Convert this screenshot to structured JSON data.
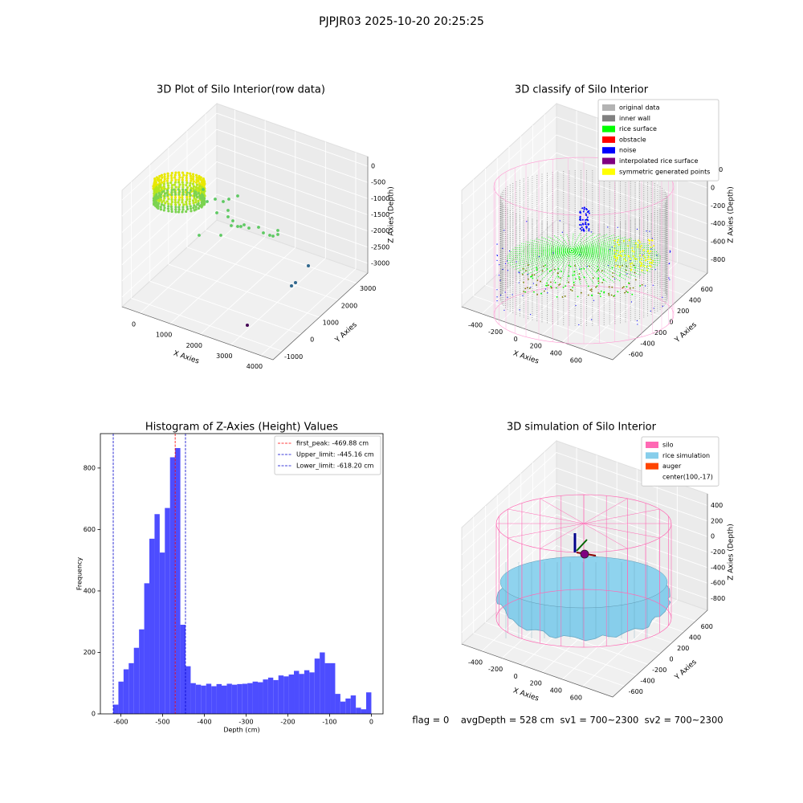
{
  "figure": {
    "title": "PJPJR03 2025-10-20 20:25:25",
    "footer": "flag = 0    avgDepth = 528 cm  sv1 = 700~2300  sv2 = 700~2300"
  },
  "chart_data": [
    {
      "type": "scatter3d",
      "title": "3D Plot of Silo Interior(row data)",
      "xlabel": "X Axies",
      "ylabel": "Y Axies",
      "zlabel": "Z Axies (Depth)",
      "xlim": [
        -600,
        4400
      ],
      "xticks": [
        0,
        1000,
        2000,
        3000,
        4000
      ],
      "ylim": [
        -1500,
        3600
      ],
      "yticks": [
        -1000,
        0,
        1000,
        2000,
        3000
      ],
      "zlim": [
        -3300,
        300
      ],
      "zticks": [
        0,
        -500,
        -1000,
        -1500,
        -2000,
        -2500,
        -3000
      ]
    },
    {
      "type": "scatter3d",
      "title": "3D classify of Silo Interior",
      "xlabel": "X Axies",
      "ylabel": "Y Axies",
      "zlabel": "Z Axies (Depth)",
      "xlim": [
        -600,
        900
      ],
      "xticks": [
        -400,
        -200,
        0,
        200,
        400,
        600
      ],
      "ylim": [
        -800,
        800
      ],
      "yticks": [
        -600,
        -400,
        -200,
        0,
        200,
        400,
        600
      ],
      "zlim": [
        -950,
        350
      ],
      "zticks": [
        200,
        0,
        -200,
        -400,
        -600,
        -800
      ],
      "legend": {
        "position": "upper right",
        "entries": [
          {
            "name": "original data",
            "color": "#b3b3b3"
          },
          {
            "name": "inner wall",
            "color": "#808080"
          },
          {
            "name": "rice surface",
            "color": "#00ff00"
          },
          {
            "name": "obstacle",
            "color": "#ff0000"
          },
          {
            "name": "noise",
            "color": "#0000ff"
          },
          {
            "name": "interpolated rice surface",
            "color": "#800080"
          },
          {
            "name": "symmetric generated points",
            "color": "#ffff00"
          }
        ]
      }
    },
    {
      "type": "histogram",
      "title": "Histogram of Z-Axies (Height) Values",
      "xlabel": "Depth (cm)",
      "ylabel": "Frequency",
      "color": "#4d4dff",
      "bins": [
        -618.2,
        -605.84,
        -593.47,
        -581.11,
        -568.74,
        -556.38,
        -544.02,
        -531.65,
        -519.29,
        -506.92,
        -494.56,
        -482.2,
        -469.83,
        -457.47,
        -445.1,
        -432.74,
        -420.38,
        -408.01,
        -395.65,
        -383.28,
        -370.92,
        -358.56,
        -346.19,
        -333.83,
        -321.46,
        -309.1,
        -296.74,
        -284.37,
        -272.01,
        -259.64,
        -247.28,
        -234.92,
        -222.55,
        -210.19,
        -197.82,
        -185.46,
        -173.1,
        -160.73,
        -148.37,
        -136,
        -123.64,
        -111.28,
        -98.91,
        -86.55,
        -74.18,
        -61.82,
        -49.46,
        -37.09,
        -24.73,
        -12.36,
        0
      ],
      "values": [
        30,
        105,
        145,
        165,
        215,
        275,
        425,
        570,
        650,
        525,
        670,
        835,
        865,
        290,
        155,
        100,
        95,
        92,
        98,
        90,
        97,
        92,
        98,
        95,
        97,
        98,
        100,
        105,
        103,
        112,
        118,
        110,
        125,
        122,
        128,
        140,
        130,
        142,
        135,
        180,
        200,
        165,
        165,
        65,
        40,
        50,
        60,
        20,
        15,
        70
      ],
      "xlim": [
        -649,
        28
      ],
      "xticks": [
        -600,
        -500,
        -400,
        -300,
        -200,
        -100,
        0
      ],
      "ylim": [
        0,
        912
      ],
      "yticks": [
        0,
        200,
        400,
        600,
        800
      ],
      "vlines": [
        {
          "name": "first_peak: -469.88 cm",
          "value": -469.88,
          "color": "#ff0000"
        },
        {
          "name": "Upper_limit: -445.16 cm",
          "value": -445.16,
          "color": "#0000cc"
        },
        {
          "name": "Lower_limit: -618.20 cm",
          "value": -618.2,
          "color": "#0000cc"
        }
      ],
      "legend": {
        "position": "upper right"
      }
    },
    {
      "type": "surface3d",
      "title": "3D simulation of Silo Interior",
      "xlabel": "X Axies",
      "ylabel": "Y Axies",
      "zlabel": "Z Axies (Depth)",
      "xlim": [
        -600,
        900
      ],
      "xticks": [
        -400,
        -200,
        0,
        200,
        400,
        600
      ],
      "ylim": [
        -800,
        800
      ],
      "yticks": [
        -600,
        -400,
        -200,
        0,
        200,
        400,
        600
      ],
      "zlim": [
        -950,
        550
      ],
      "zticks": [
        400,
        200,
        0,
        -200,
        -400,
        -600,
        -800
      ],
      "legend": {
        "position": "upper right",
        "entries": [
          {
            "name": "silo",
            "color": "#ff69b4"
          },
          {
            "name": "rice simulation",
            "color": "#87ceeb"
          },
          {
            "name": "auger",
            "color": "#ff4500"
          },
          {
            "name": "center(100,-17)"
          }
        ]
      }
    }
  ]
}
